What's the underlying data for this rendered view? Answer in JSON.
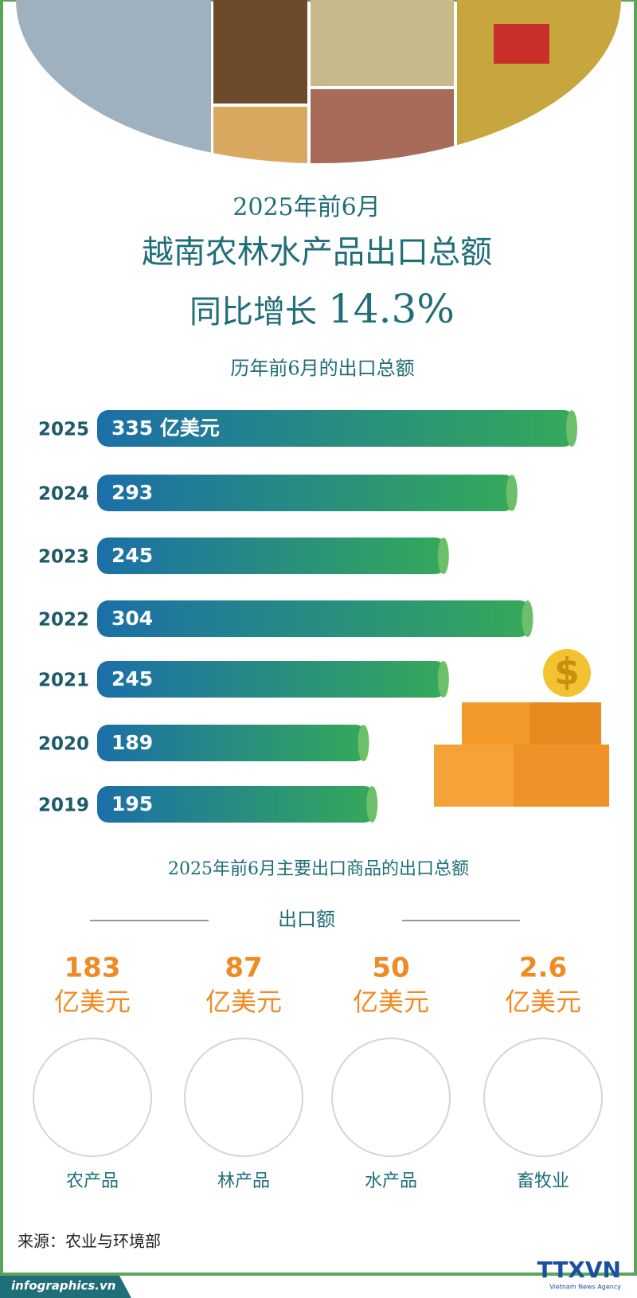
{
  "header": {
    "date": "2025年前6月",
    "title": "越南农林水产品出口总额",
    "growth_label": "同比增长",
    "growth_value": "14.3%"
  },
  "chart_data": {
    "type": "bar",
    "orientation": "horizontal",
    "title": "历年前6月的出口总额",
    "categories": [
      "2025",
      "2024",
      "2023",
      "2022",
      "2021",
      "2020",
      "2019"
    ],
    "values": [
      335,
      293,
      245,
      304,
      245,
      189,
      195
    ],
    "value_labels": [
      "335 亿美元",
      "293",
      "245",
      "304",
      "245",
      "189",
      "195"
    ],
    "color": "#1b72a6"
  },
  "products": {
    "title": "2025年前6月主要出口商品的出口总额",
    "subtitle": "出口额",
    "items": [
      {
        "value": "183",
        "unit": "亿美元",
        "name": "农产品"
      },
      {
        "value": "87",
        "unit": "亿美元",
        "name": "林产品"
      },
      {
        "value": "50",
        "unit": "亿美元",
        "name": "水产品"
      },
      {
        "value": "2.6",
        "unit": "亿美元",
        "name": "畜牧业"
      }
    ]
  },
  "footer": {
    "source": "来源：农业与环境部",
    "site": "infographics.vn",
    "brand": "TTXVN",
    "agency": "Vietnam News Agency"
  }
}
